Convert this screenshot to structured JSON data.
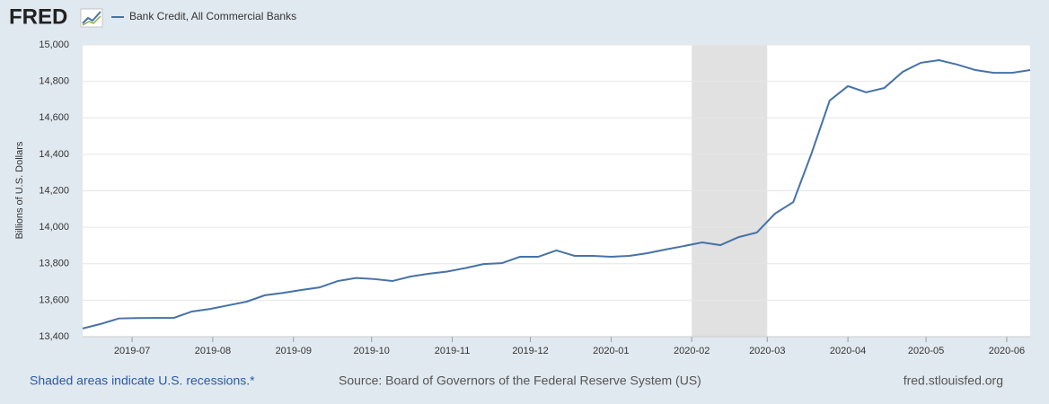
{
  "logo": "FRED",
  "chart_data": {
    "type": "line",
    "y_label": "Billions of U.S. Dollars",
    "series": [
      {
        "name": "Bank Credit, All Commercial Banks",
        "color": "#4572a7",
        "values": [
          13445,
          13470,
          13500,
          13502,
          13503,
          13503,
          13538,
          13552,
          13572,
          13592,
          13627,
          13640,
          13656,
          13670,
          13705,
          13722,
          13716,
          13705,
          13730,
          13745,
          13757,
          13776,
          13798,
          13803,
          13838,
          13838,
          13873,
          13843,
          13843,
          13838,
          13843,
          13858,
          13878,
          13897,
          13917,
          13902,
          13946,
          13971,
          14075,
          14138,
          14404,
          14695,
          14774,
          14740,
          14764,
          14852,
          14902,
          14916,
          14892,
          14862,
          14847,
          14847,
          14862
        ]
      }
    ],
    "xlim": [
      0,
      52
    ],
    "xticks": [
      {
        "value": 2.714,
        "label": "2019-07"
      },
      {
        "value": 7.143,
        "label": "2019-08"
      },
      {
        "value": 11.571,
        "label": "2019-09"
      },
      {
        "value": 15.857,
        "label": "2019-10"
      },
      {
        "value": 20.286,
        "label": "2019-11"
      },
      {
        "value": 24.571,
        "label": "2019-12"
      },
      {
        "value": 29,
        "label": "2020-01"
      },
      {
        "value": 33.429,
        "label": "2020-02"
      },
      {
        "value": 37.571,
        "label": "2020-03"
      },
      {
        "value": 42,
        "label": "2020-04"
      },
      {
        "value": 46.286,
        "label": "2020-05"
      },
      {
        "value": 50.714,
        "label": "2020-06"
      }
    ],
    "ylim": [
      13400,
      15000
    ],
    "yticks": [
      {
        "value": 13400,
        "label": "13,400"
      },
      {
        "value": 13600,
        "label": "13,600"
      },
      {
        "value": 13800,
        "label": "13,800"
      },
      {
        "value": 14000,
        "label": "14,000"
      },
      {
        "value": 14200,
        "label": "14,200"
      },
      {
        "value": 14400,
        "label": "14,400"
      },
      {
        "value": 14600,
        "label": "14,600"
      },
      {
        "value": 14800,
        "label": "14,800"
      },
      {
        "value": 15000,
        "label": "15,000"
      }
    ],
    "grid": true,
    "recession_shading": [
      [
        33.429,
        37.571
      ]
    ],
    "note": "Shaded areas indicate U.S. recessions.*",
    "source": "Source: Board of Governors of the Federal Reserve System (US)",
    "site": "fred.stlouisfed.org"
  }
}
